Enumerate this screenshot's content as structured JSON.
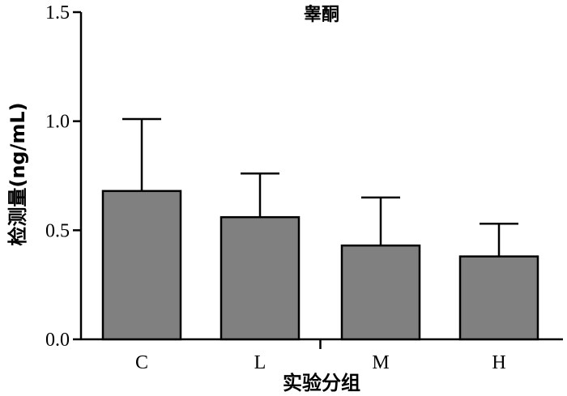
{
  "chart_data": {
    "type": "bar",
    "title": "睾酮",
    "xlabel": "实验分组",
    "ylabel": "检测量(ng/mL)",
    "categories": [
      "C",
      "L",
      "M",
      "H"
    ],
    "values": [
      0.68,
      0.56,
      0.43,
      0.38
    ],
    "error_upper": [
      1.01,
      0.76,
      0.65,
      0.53
    ],
    "ylim": [
      0,
      1.5
    ],
    "yticks": [
      "0.0",
      "0.5",
      "1.0",
      "1.5"
    ],
    "grid": false,
    "bar_color": "#808080",
    "edge_color": "#000000"
  }
}
